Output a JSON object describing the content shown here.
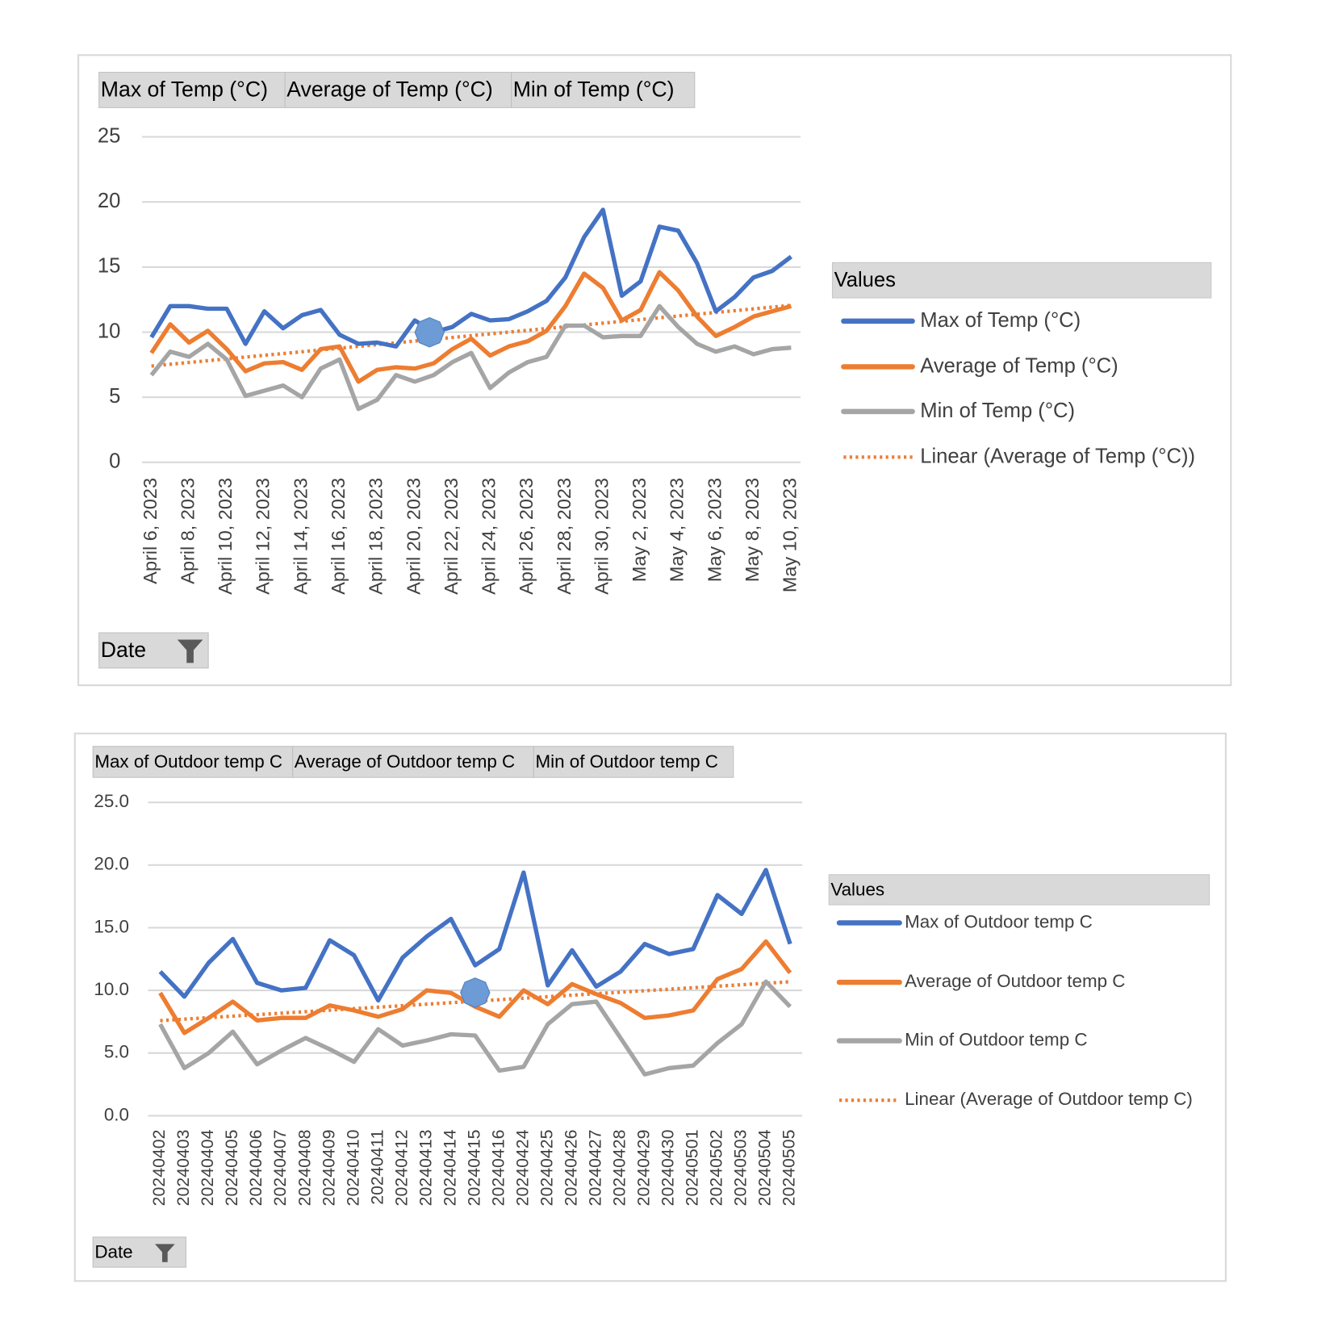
{
  "chart_data": [
    {
      "type": "line",
      "x_label": "Date",
      "legend_title": "Values",
      "categories": [
        "April 6, 2023",
        null,
        "April 8, 2023",
        null,
        "April 10, 2023",
        null,
        "April 12, 2023",
        null,
        "April 14, 2023",
        null,
        "April 16, 2023",
        null,
        "April 18, 2023",
        null,
        "April 20, 2023",
        null,
        "April 22, 2023",
        null,
        "April 24, 2023",
        null,
        "April 26, 2023",
        null,
        "April 28, 2023",
        null,
        "April 30, 2023",
        null,
        "May 2, 2023",
        null,
        "May 4, 2023",
        null,
        "May 6, 2023",
        null,
        "May 8, 2023",
        null,
        "May 10, 2023"
      ],
      "series": [
        {
          "name": "Max of Temp (°C)",
          "color": "#4472c4",
          "values": [
            9.6,
            12.0,
            12.0,
            11.8,
            11.8,
            9.1,
            11.6,
            10.3,
            11.3,
            11.7,
            9.8,
            9.1,
            9.2,
            8.9,
            10.9,
            10.0,
            10.4,
            11.4,
            10.9,
            11.0,
            11.6,
            12.4,
            14.2,
            17.3,
            19.4,
            12.8,
            13.9,
            18.1,
            17.8,
            15.3,
            11.6,
            12.7,
            14.2,
            14.7,
            15.8
          ]
        },
        {
          "name": "Average of Temp (°C)",
          "color": "#ed7d31",
          "values": [
            8.4,
            10.6,
            9.2,
            10.1,
            8.7,
            7.0,
            7.6,
            7.7,
            7.1,
            8.7,
            8.9,
            6.2,
            7.1,
            7.3,
            7.2,
            7.6,
            8.7,
            9.5,
            8.2,
            8.9,
            9.3,
            10.1,
            12.0,
            14.5,
            13.4,
            10.9,
            11.7,
            14.6,
            13.2,
            11.2,
            9.7,
            10.4,
            11.2,
            11.6,
            12.0
          ]
        },
        {
          "name": "Min of Temp (°C)",
          "color": "#a5a5a5",
          "values": [
            6.7,
            8.5,
            8.1,
            9.1,
            7.9,
            5.1,
            5.5,
            5.9,
            5.0,
            7.2,
            7.9,
            4.1,
            4.8,
            6.7,
            6.2,
            6.7,
            7.7,
            8.4,
            5.7,
            6.9,
            7.7,
            8.1,
            10.5,
            10.5,
            9.6,
            9.7,
            9.7,
            12.0,
            10.4,
            9.1,
            8.5,
            8.9,
            8.3,
            8.7,
            8.8
          ]
        }
      ],
      "trendline": {
        "name": "Linear (Average of Temp (°C))",
        "type": "linear",
        "series": 1,
        "color": "#ed7d31"
      },
      "ylim": [
        0,
        25
      ],
      "yticks": [
        0,
        5,
        10,
        15,
        20,
        25
      ],
      "grid": true
    },
    {
      "type": "line",
      "x_label": "Date",
      "legend_title": "Values",
      "categories": [
        "20240402",
        "20240403",
        "20240404",
        "20240405",
        "20240406",
        "20240407",
        "20240408",
        "20240409",
        "20240410",
        "20240411",
        "20240412",
        "20240413",
        "20240414",
        "20240415",
        "20240416",
        "20240424",
        "20240425",
        "20240426",
        "20240427",
        "20240428",
        "20240429",
        "20240430",
        "20240501",
        "20240502",
        "20240503",
        "20240504",
        "20240505"
      ],
      "series": [
        {
          "name": "Max of Outdoor temp C",
          "color": "#4472c4",
          "values": [
            11.5,
            9.5,
            12.2,
            14.1,
            10.6,
            10.0,
            10.2,
            14.0,
            12.8,
            9.2,
            12.6,
            14.3,
            15.7,
            12.0,
            13.3,
            19.4,
            10.4,
            13.2,
            10.3,
            11.5,
            13.7,
            12.9,
            13.3,
            17.6,
            16.1,
            19.6,
            13.7
          ]
        },
        {
          "name": "Average of Outdoor temp C",
          "color": "#ed7d31",
          "values": [
            9.8,
            6.6,
            7.8,
            9.1,
            7.6,
            7.8,
            7.8,
            8.8,
            8.4,
            7.9,
            8.5,
            10.0,
            9.8,
            8.7,
            7.9,
            10.0,
            8.9,
            10.5,
            9.7,
            9.0,
            7.8,
            8.0,
            8.4,
            10.9,
            11.7,
            13.9,
            11.4
          ]
        },
        {
          "name": "Min of Outdoor temp C",
          "color": "#a5a5a5",
          "values": [
            7.3,
            3.8,
            5.0,
            6.7,
            4.1,
            5.2,
            6.2,
            5.3,
            4.3,
            6.9,
            5.6,
            6.0,
            6.5,
            6.4,
            3.6,
            3.9,
            7.3,
            8.9,
            9.1,
            6.2,
            3.3,
            3.8,
            4.0,
            5.8,
            7.3,
            10.7,
            8.7
          ]
        }
      ],
      "trendline": {
        "name": "Linear (Average of Outdoor temp C)",
        "type": "linear",
        "series": 1,
        "color": "#ed7d31"
      },
      "ylim": [
        0,
        25
      ],
      "yticks": [
        {
          "value": 0,
          "label": "0.0"
        },
        {
          "value": 5,
          "label": "5.0"
        },
        {
          "value": 10,
          "label": "10.0"
        },
        {
          "value": 15,
          "label": "15.0"
        },
        {
          "value": 20,
          "label": "20.0"
        },
        {
          "value": 25,
          "label": "25.0"
        }
      ],
      "grid": true
    }
  ]
}
